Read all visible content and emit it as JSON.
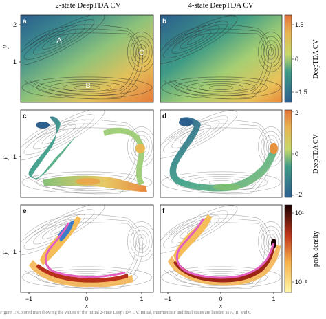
{
  "titles": {
    "left": "2-state DeepTDA CV",
    "right": "4-state DeepTDA CV"
  },
  "panel_labels": [
    "a",
    "b",
    "c",
    "d",
    "e",
    "f"
  ],
  "state_labels": [
    "A",
    "B",
    "C"
  ],
  "axes": {
    "xlabel": "x",
    "ylabel": "y",
    "x_ticks": [
      "−1",
      "0",
      "1"
    ],
    "y_ticks_row1": [
      "2",
      "1"
    ],
    "y_ticks_row2": [
      "1"
    ],
    "y_ticks_row3": [
      "1"
    ]
  },
  "colorbars": {
    "cv1": {
      "label": "DeepTDA CV",
      "ticks": [
        "1.5",
        "0",
        "−1.5"
      ]
    },
    "cv2": {
      "label": "DeepTDA CV",
      "ticks": [
        "2",
        "0",
        "−2"
      ]
    },
    "density": {
      "label": "prob. density",
      "ticks": [
        "10¹",
        "10⁻²"
      ]
    }
  },
  "caption": "Figure 1: Colored map showing the values of the initial 2-state DeepTDA CV. Initial, intermediate and final states are labeled as A, B, and C",
  "colors": {
    "cv_low": "#2c5e8e",
    "cv_mid": "#8fc77b",
    "cv_high": "#e8833a",
    "path": "#e35fbf",
    "density_high": "#1a0000",
    "density_low": "#fff7a8"
  }
}
